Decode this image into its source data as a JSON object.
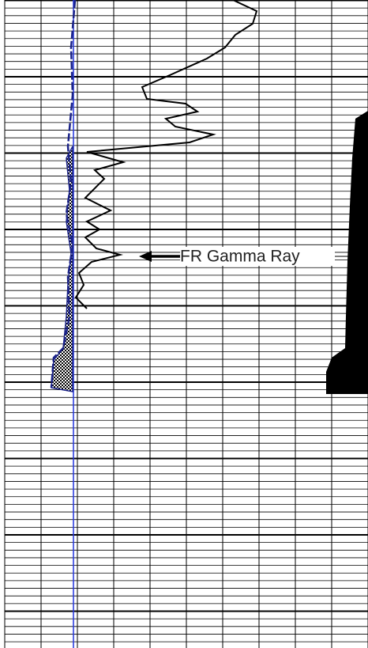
{
  "annotation": "FR Gamma Ray"
}
